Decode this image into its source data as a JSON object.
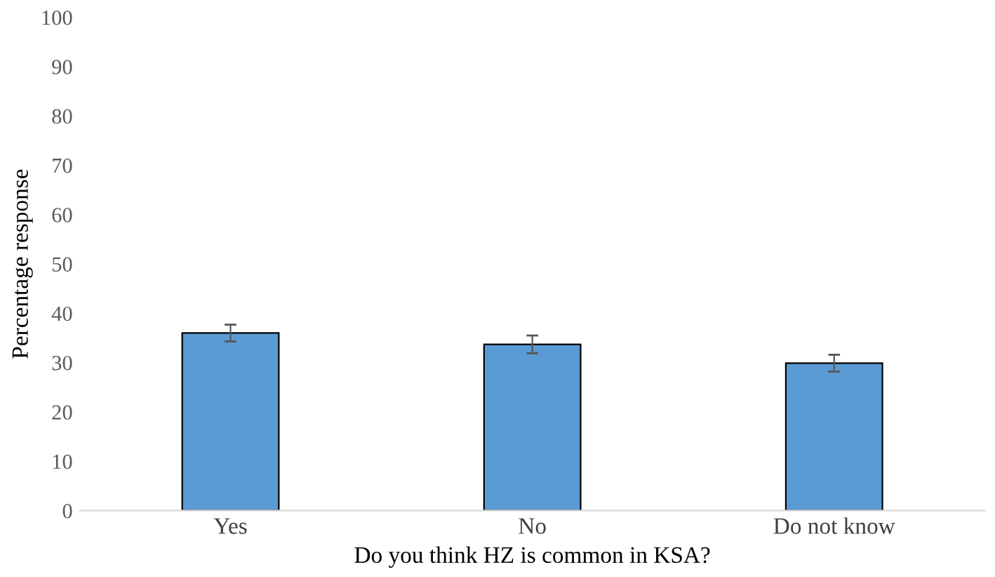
{
  "chart_data": {
    "type": "bar",
    "xlabel": "Do you think HZ is common in KSA?",
    "ylabel": "Percentage response",
    "categories": [
      "Yes",
      "No",
      "Do not know"
    ],
    "values": [
      36,
      33.7,
      29.9
    ],
    "errors": [
      1.7,
      1.8,
      1.7
    ],
    "color": "#5b9bd5",
    "ylim": [
      0,
      100
    ],
    "yticks": [
      0,
      10,
      20,
      30,
      40,
      50,
      60,
      70,
      80,
      90,
      100
    ],
    "grid": false
  }
}
